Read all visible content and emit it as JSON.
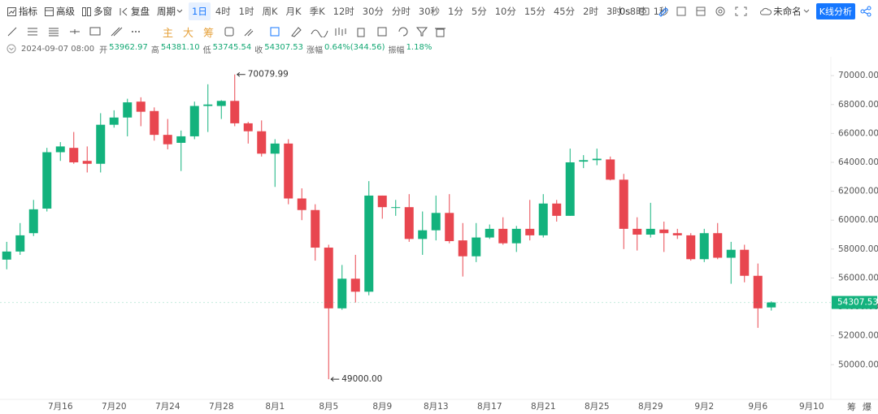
{
  "toolbar": {
    "tools": [
      "指标",
      "高级",
      "多窗",
      "复盘"
    ],
    "period_menu": "周期",
    "periods": [
      {
        "label": "1日",
        "active": true
      },
      {
        "label": "4时"
      },
      {
        "label": "1时"
      },
      {
        "label": "周K"
      },
      {
        "label": "月K"
      },
      {
        "label": "季K"
      },
      {
        "label": "12时"
      },
      {
        "label": "30分"
      },
      {
        "label": "分时"
      },
      {
        "label": "30秒"
      },
      {
        "label": "1分"
      },
      {
        "label": "5分"
      },
      {
        "label": "10分"
      },
      {
        "label": "15分"
      },
      {
        "label": "45分"
      },
      {
        "label": "2时"
      },
      {
        "label": "3时"
      },
      {
        "label": "8时"
      },
      {
        "label": "1秒"
      }
    ],
    "countdown": "0s",
    "layout_name": "未命名",
    "analysis_button": "K线分析",
    "indicator_buttons": [
      "主",
      "大",
      "筹"
    ]
  },
  "info_bar": {
    "time": "2024-09-07 08:00",
    "fields": [
      {
        "label": "开",
        "value": "53962.97"
      },
      {
        "label": "高",
        "value": "54381.10"
      },
      {
        "label": "低",
        "value": "53745.54"
      },
      {
        "label": "收",
        "value": "54307.53"
      },
      {
        "label": "涨幅",
        "value": "0.64%(344.56)"
      },
      {
        "label": "振幅",
        "value": "1.18%"
      }
    ]
  },
  "chart_data": {
    "type": "candlestick",
    "categories": [
      null,
      null,
      null,
      null,
      "7月16",
      null,
      null,
      null,
      "7月20",
      null,
      null,
      null,
      "7月24",
      null,
      null,
      null,
      "7月28",
      null,
      null,
      null,
      "8月1",
      null,
      null,
      null,
      "8月5",
      null,
      null,
      null,
      "8月9",
      null,
      null,
      null,
      "8月13",
      null,
      null,
      null,
      "8月17",
      null,
      null,
      null,
      "8月21",
      null,
      null,
      null,
      "8月25",
      null,
      null,
      null,
      "8月29",
      null,
      null,
      null,
      "9月2",
      null,
      null,
      null,
      "9月6",
      null,
      null,
      null,
      "9月10"
    ],
    "open": [
      57270,
      57830,
      59100,
      60800,
      64700,
      65000,
      64100,
      63900,
      66600,
      67100,
      68200,
      67550,
      65900,
      65350,
      65800,
      67900,
      67900,
      68250,
      66700,
      66150,
      64600,
      65300,
      61500,
      60700,
      58100,
      53900,
      55950,
      55050,
      61700,
      60850,
      60900,
      58700,
      59300,
      60500,
      58600,
      57500,
      58800,
      59400,
      58400,
      59400,
      58950,
      61150,
      60300,
      64050,
      64150,
      64200,
      62800,
      59400,
      59000,
      59350,
      59100,
      58950,
      57300,
      59100,
      57400,
      57950,
      56150,
      53962.97,
      null,
      null,
      null
    ],
    "high": [
      58500,
      59800,
      61400,
      65000,
      65400,
      66100,
      65100,
      67400,
      67600,
      68400,
      68500,
      67800,
      67000,
      66200,
      68200,
      69400,
      68300,
      70079.99,
      66800,
      66900,
      65600,
      65600,
      62200,
      61100,
      58300,
      56900,
      57600,
      62700,
      61700,
      61400,
      61800,
      60600,
      61700,
      61800,
      59800,
      59800,
      59700,
      60200,
      59600,
      61400,
      61800,
      61400,
      64950,
      64500,
      64950,
      64400,
      63200,
      60200,
      61200,
      59900,
      59400,
      59100,
      59400,
      59800,
      58500,
      58300,
      57000,
      54381.1,
      null,
      null,
      null
    ],
    "low": [
      56600,
      57600,
      58900,
      60600,
      64100,
      63900,
      63300,
      63300,
      66400,
      65800,
      66500,
      65500,
      64900,
      63400,
      65600,
      66100,
      67000,
      66500,
      65300,
      64400,
      62300,
      61100,
      60000,
      57200,
      49000,
      53800,
      54300,
      54800,
      60100,
      60300,
      58500,
      57600,
      58600,
      58400,
      56100,
      57100,
      58700,
      58300,
      57800,
      58600,
      58800,
      59900,
      60300,
      63600,
      63800,
      62750,
      58000,
      57900,
      58800,
      57800,
      58700,
      57200,
      57100,
      57300,
      55600,
      55700,
      52550,
      53745.54,
      null,
      null,
      null
    ],
    "close": [
      57830,
      58950,
      60750,
      64700,
      65100,
      64000,
      63900,
      66600,
      67100,
      68150,
      67500,
      65900,
      65250,
      65800,
      67900,
      68000,
      68250,
      66700,
      66150,
      64600,
      65300,
      61500,
      60700,
      58100,
      53900,
      55950,
      55050,
      61700,
      60900,
      60900,
      58700,
      59300,
      60500,
      58550,
      57500,
      58800,
      59400,
      58400,
      59400,
      58950,
      61150,
      60300,
      64000,
      64150,
      64250,
      62800,
      59400,
      59000,
      59400,
      59100,
      58950,
      57300,
      59100,
      57400,
      57950,
      56150,
      53900,
      54307.53,
      null,
      null,
      null
    ],
    "up_color": "#13b27d",
    "down_color": "#e8464f",
    "ylim": [
      47600,
      71300
    ],
    "yticks": [
      {
        "value": 50000,
        "label": "50000.00"
      },
      {
        "value": 52000,
        "label": "52000.00"
      },
      {
        "value": 54000,
        "label": "54000.00"
      },
      {
        "value": 56000,
        "label": "56000.00"
      },
      {
        "value": 58000,
        "label": "58000.00"
      },
      {
        "value": 60000,
        "label": "60000.00"
      },
      {
        "value": 62000,
        "label": "62000.00"
      },
      {
        "value": 64000,
        "label": "64000.00"
      },
      {
        "value": 66000,
        "label": "66000.00"
      },
      {
        "value": 68000,
        "label": "68000.00"
      },
      {
        "value": 70000,
        "label": "70000.00"
      }
    ],
    "grid": false,
    "annotations": [
      {
        "value": 70079.99,
        "label": "70079.99"
      },
      {
        "value": 49000,
        "label": "49000.00"
      }
    ],
    "last_price": {
      "value": 54307.53,
      "label": "54307.53",
      "color": "#13b27d"
    }
  },
  "footer": [
    "筹",
    "爆"
  ]
}
